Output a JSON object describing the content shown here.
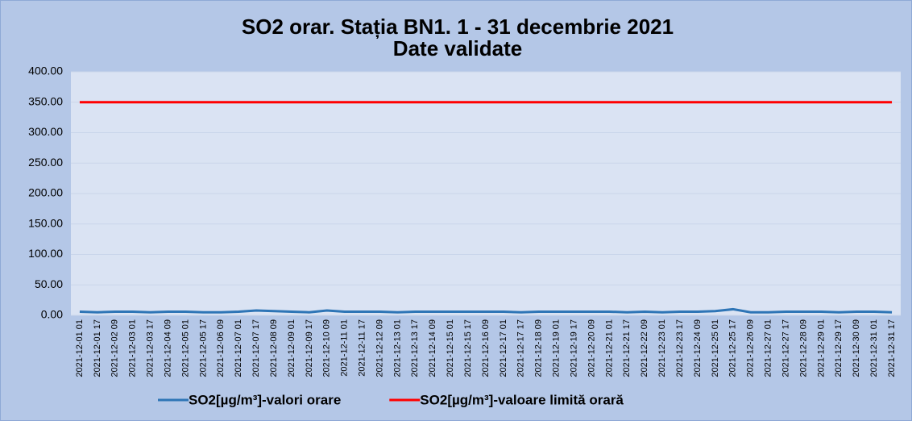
{
  "chart_data": {
    "type": "line",
    "title": "SO2 orar. Stația BN1. 1 - 31 decembrie 2021",
    "subtitle": "Date validate",
    "categories": [
      "2021-12-01 01",
      "2021-12-01 17",
      "2021-12-02 09",
      "2021-12-03 01",
      "2021-12-03 17",
      "2021-12-04 09",
      "2021-12-05 01",
      "2021-12-05 17",
      "2021-12-06 09",
      "2021-12-07 01",
      "2021-12-07 17",
      "2021-12-08 09",
      "2021-12-09 01",
      "2021-12-09 17",
      "2021-12-10 09",
      "2021-12-11 01",
      "2021-12-11 17",
      "2021-12-12 09",
      "2021-12-13 01",
      "2021-12-13 17",
      "2021-12-14 09",
      "2021-12-15 01",
      "2021-12-15 17",
      "2021-12-16 09",
      "2021-12-17 01",
      "2021-12-17 17",
      "2021-12-18 09",
      "2021-12-19 01",
      "2021-12-19 17",
      "2021-12-20 09",
      "2021-12-21 01",
      "2021-12-21 17",
      "2021-12-22 09",
      "2021-12-23 01",
      "2021-12-23 17",
      "2021-12-24 09",
      "2021-12-25 01",
      "2021-12-25 17",
      "2021-12-26 09",
      "2021-12-27 01",
      "2021-12-27 17",
      "2021-12-28 09",
      "2021-12-29 01",
      "2021-12-29 17",
      "2021-12-30 09",
      "2021-12-31 01",
      "2021-12-31 17"
    ],
    "series": [
      {
        "name": "SO2[µg/m³]-valori orare",
        "color": "#2e75b6",
        "values": [
          6,
          5,
          6,
          6,
          5,
          6,
          6,
          5,
          5,
          6,
          8,
          7,
          6,
          5,
          8,
          6,
          6,
          6,
          5,
          6,
          6,
          6,
          6,
          6,
          6,
          5,
          6,
          6,
          6,
          6,
          6,
          5,
          6,
          5,
          6,
          6,
          7,
          10,
          5,
          5,
          6,
          6,
          6,
          5,
          6,
          6,
          5
        ]
      },
      {
        "name": "SO2[µg/m³]-valoare limită orară",
        "color": "#ff0000",
        "values": [
          350,
          350,
          350,
          350,
          350,
          350,
          350,
          350,
          350,
          350,
          350,
          350,
          350,
          350,
          350,
          350,
          350,
          350,
          350,
          350,
          350,
          350,
          350,
          350,
          350,
          350,
          350,
          350,
          350,
          350,
          350,
          350,
          350,
          350,
          350,
          350,
          350,
          350,
          350,
          350,
          350,
          350,
          350,
          350,
          350,
          350,
          350
        ]
      }
    ],
    "ylim": [
      0,
      400
    ],
    "yticks": [
      {
        "value": 0,
        "label": "0.00"
      },
      {
        "value": 50,
        "label": "50.00"
      },
      {
        "value": 100,
        "label": "100.00"
      },
      {
        "value": 150,
        "label": "150.00"
      },
      {
        "value": 200,
        "label": "200.00"
      },
      {
        "value": 250,
        "label": "250.00"
      },
      {
        "value": 300,
        "label": "300.00"
      },
      {
        "value": 350,
        "label": "350.00"
      },
      {
        "value": 400,
        "label": "400.00"
      }
    ],
    "grid": true,
    "legend": "bottom"
  }
}
